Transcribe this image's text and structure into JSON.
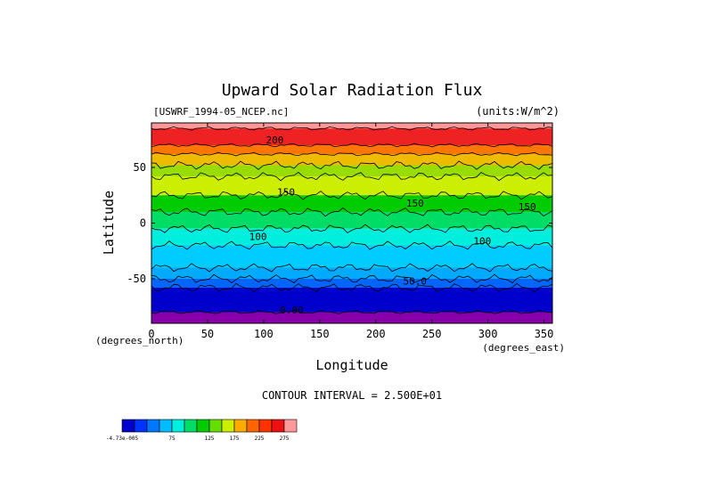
{
  "chart_data": {
    "type": "heatmap",
    "title": "Upward Solar Radiation Flux",
    "source_label": "[USWRF_1994-05_NCEP.nc]",
    "units_label": "(units:W/m^2)",
    "xlabel": "Longitude",
    "ylabel": "Latitude",
    "x_unit_label": "(degrees_east)",
    "y_unit_label": "(degrees_north)",
    "xlim": [
      0,
      357.5
    ],
    "ylim": [
      -90,
      90
    ],
    "x_ticks": [
      "0",
      "50",
      "100",
      "150",
      "200",
      "250",
      "300",
      "350"
    ],
    "y_ticks": [
      "50",
      "0",
      "-50"
    ],
    "contour_interval_label": "CONTOUR INTERVAL = 2.500E+01",
    "contour_labels": [
      {
        "text": "200",
        "lon": 110,
        "lat": 75
      },
      {
        "text": "150",
        "lon": 120,
        "lat": 28
      },
      {
        "text": "150",
        "lon": 235,
        "lat": 18
      },
      {
        "text": "150",
        "lon": 335,
        "lat": 15
      },
      {
        "text": "100",
        "lon": 95,
        "lat": -12
      },
      {
        "text": "100",
        "lon": 295,
        "lat": -16
      },
      {
        "text": "50.0",
        "lon": 235,
        "lat": -52
      },
      {
        "text": "0.00",
        "lon": 125,
        "lat": -78
      }
    ],
    "colorbar": {
      "tick_labels": [
        "-4.73e-005",
        "75",
        "125",
        "175",
        "225",
        "275"
      ],
      "colors": [
        "#0000cc",
        "#0033ff",
        "#0077ff",
        "#00bbff",
        "#00eedd",
        "#00dd66",
        "#00cc00",
        "#66dd00",
        "#ccee00",
        "#ffaa00",
        "#ff6600",
        "#ff3300",
        "#ee1111",
        "#ff9999"
      ]
    },
    "bands": [
      {
        "lat_from": 90,
        "lat_to": 85,
        "color": "#ff9999"
      },
      {
        "lat_from": 85,
        "lat_to": 70,
        "color": "#ee2222"
      },
      {
        "lat_from": 70,
        "lat_to": 62,
        "color": "#ff7700"
      },
      {
        "lat_from": 62,
        "lat_to": 52,
        "color": "#eebb00"
      },
      {
        "lat_from": 52,
        "lat_to": 42,
        "color": "#99dd00"
      },
      {
        "lat_from": 42,
        "lat_to": 25,
        "color": "#ccee00"
      },
      {
        "lat_from": 25,
        "lat_to": 10,
        "color": "#00cc00"
      },
      {
        "lat_from": 10,
        "lat_to": -5,
        "color": "#00dd66"
      },
      {
        "lat_from": -5,
        "lat_to": -20,
        "color": "#00eedd"
      },
      {
        "lat_from": -20,
        "lat_to": -40,
        "color": "#00ccff"
      },
      {
        "lat_from": -40,
        "lat_to": -50,
        "color": "#00aaff"
      },
      {
        "lat_from": -50,
        "lat_to": -58,
        "color": "#0066ff"
      },
      {
        "lat_from": -58,
        "lat_to": -80,
        "color": "#0000cc"
      },
      {
        "lat_from": -80,
        "lat_to": -90,
        "color": "#8800aa"
      }
    ]
  }
}
